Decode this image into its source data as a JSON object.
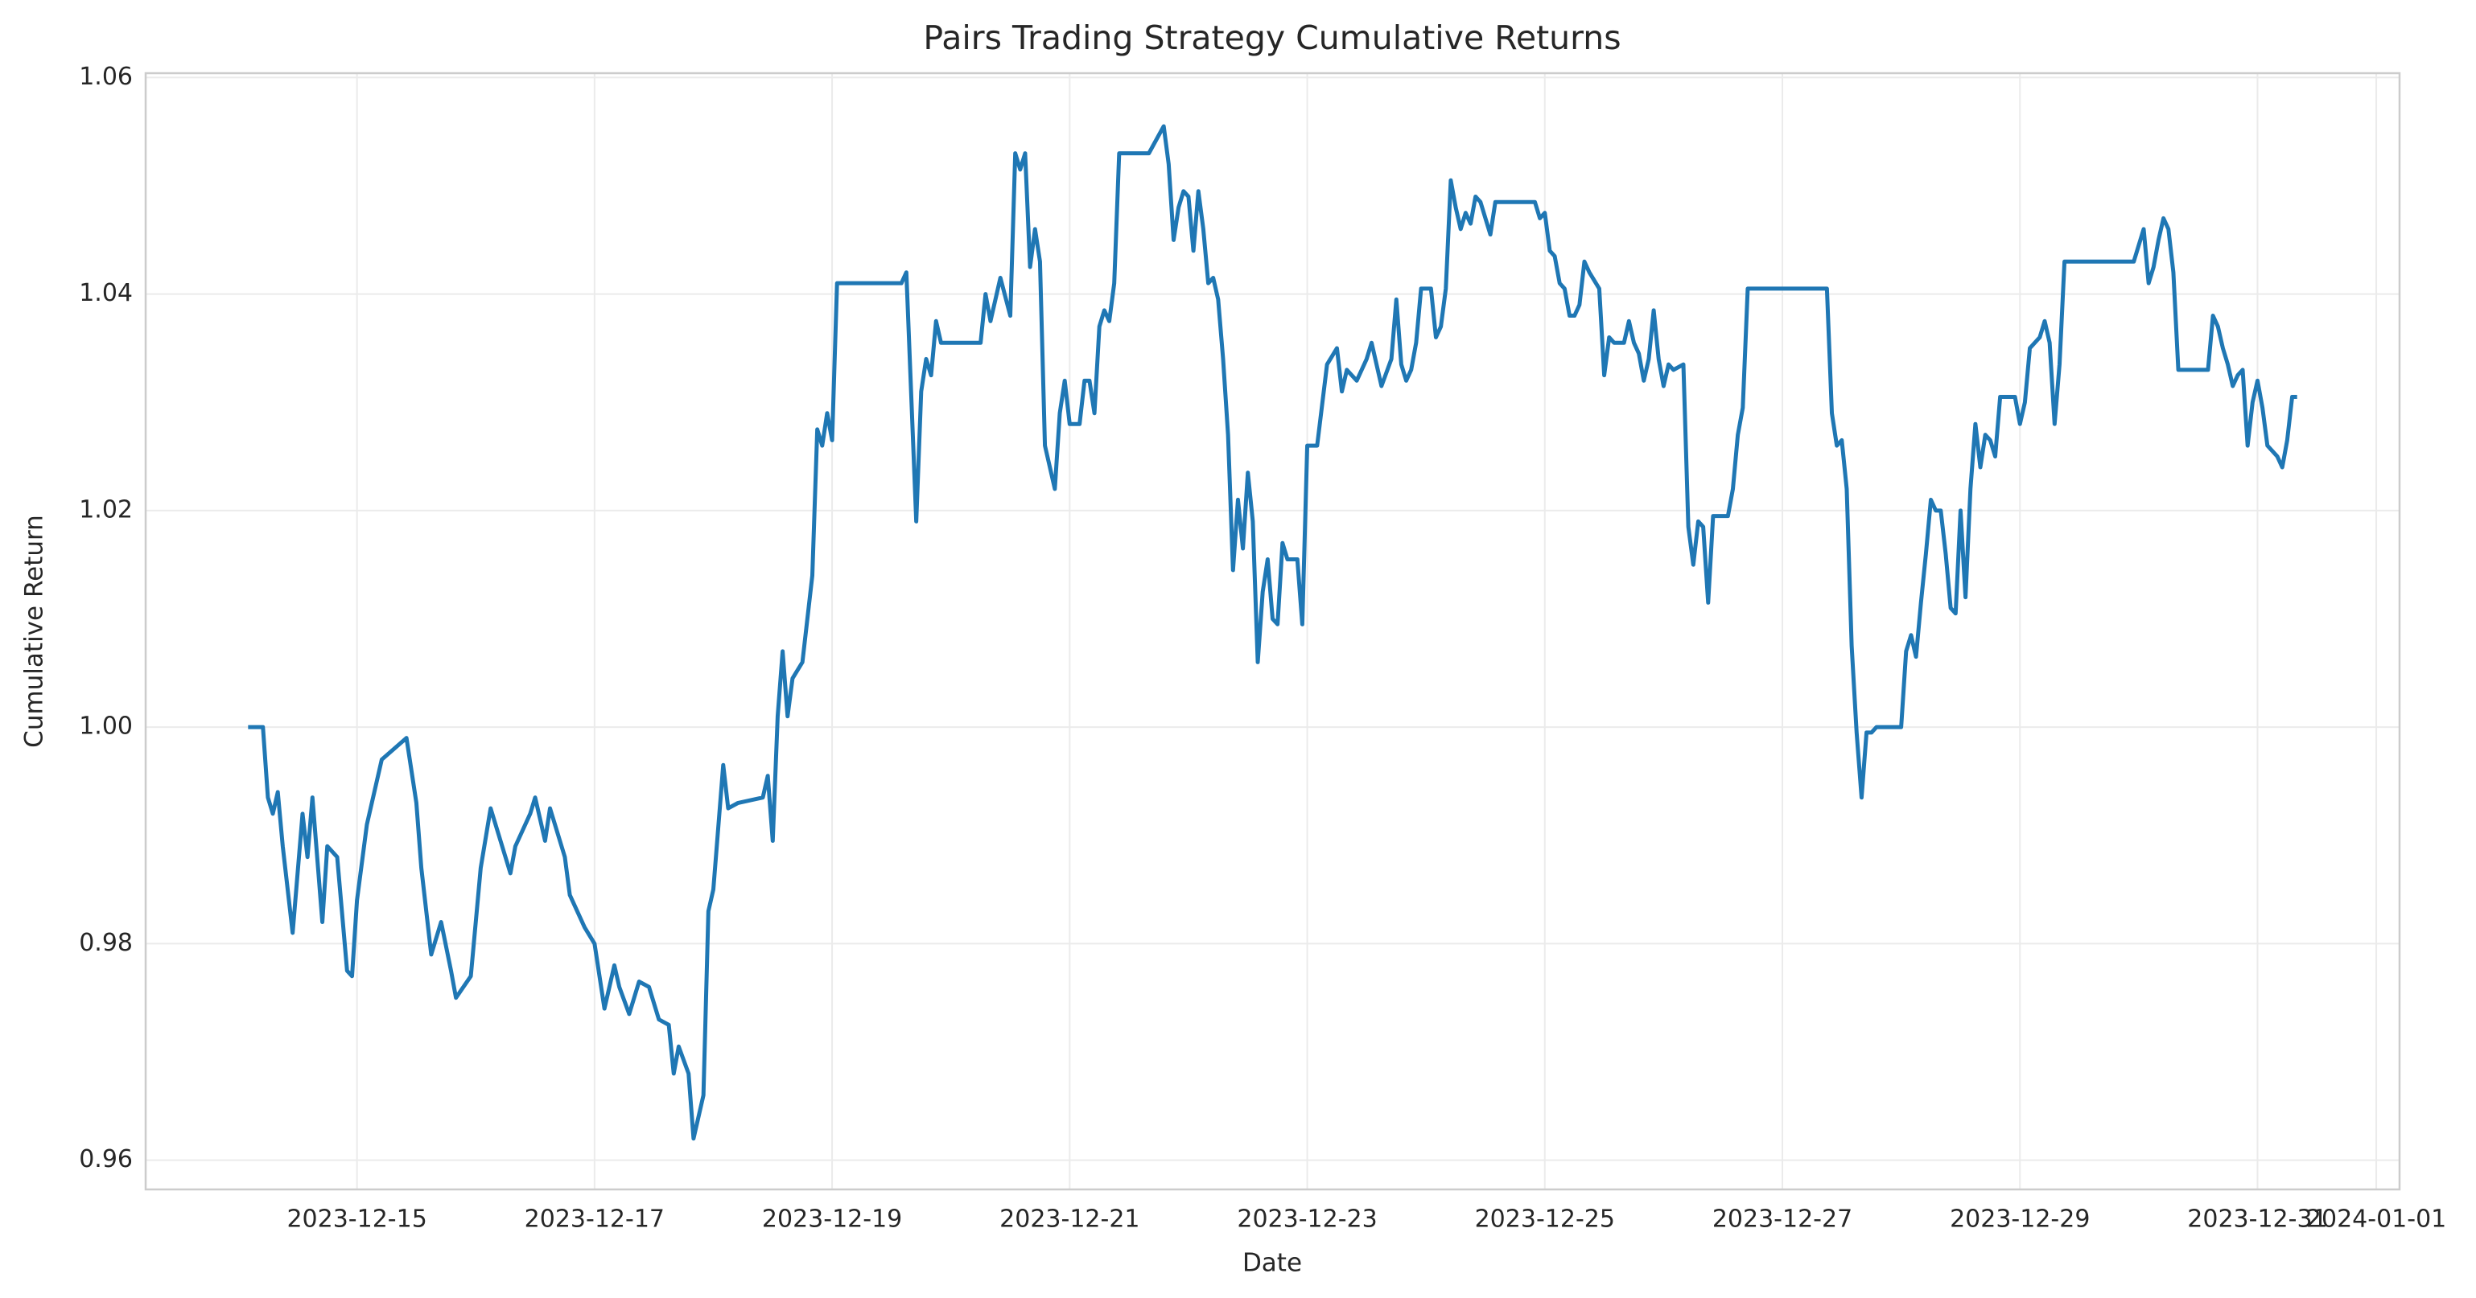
{
  "chart_data": {
    "type": "line",
    "title": "Pairs Trading Strategy Cumulative Returns",
    "x_label": "Date",
    "y_label": "Cumulative Return",
    "color": "#1f77b4",
    "grid": true,
    "x": [
      "2023-12-14T02:00",
      "2023-12-14T05:00",
      "2023-12-14T06:00",
      "2023-12-14T07:00",
      "2023-12-14T08:00",
      "2023-12-14T09:00",
      "2023-12-14T11:00",
      "2023-12-14T13:00",
      "2023-12-14T14:00",
      "2023-12-14T15:00",
      "2023-12-14T17:00",
      "2023-12-14T18:00",
      "2023-12-14T20:00",
      "2023-12-14T22:00",
      "2023-12-14T23:00",
      "2023-12-15T00:00",
      "2023-12-15T02:00",
      "2023-12-15T05:00",
      "2023-12-15T10:00",
      "2023-12-15T12:00",
      "2023-12-15T13:00",
      "2023-12-15T15:00",
      "2023-12-15T17:00",
      "2023-12-15T19:00",
      "2023-12-15T20:00",
      "2023-12-15T23:00",
      "2023-12-16T01:00",
      "2023-12-16T03:00",
      "2023-12-16T06:00",
      "2023-12-16T07:00",
      "2023-12-16T08:00",
      "2023-12-16T11:00",
      "2023-12-16T12:00",
      "2023-12-16T14:00",
      "2023-12-16T15:00",
      "2023-12-16T18:00",
      "2023-12-16T19:00",
      "2023-12-16T22:00",
      "2023-12-17T00:00",
      "2023-12-17T02:00",
      "2023-12-17T04:00",
      "2023-12-17T05:00",
      "2023-12-17T07:00",
      "2023-12-17T09:00",
      "2023-12-17T11:00",
      "2023-12-17T13:00",
      "2023-12-17T15:00",
      "2023-12-17T16:00",
      "2023-12-17T17:00",
      "2023-12-17T19:00",
      "2023-12-17T20:00",
      "2023-12-17T22:00",
      "2023-12-17T23:00",
      "2023-12-18T00:00",
      "2023-12-18T02:00",
      "2023-12-18T03:00",
      "2023-12-18T05:00",
      "2023-12-18T10:00",
      "2023-12-18T11:00",
      "2023-12-18T12:00",
      "2023-12-18T13:00",
      "2023-12-18T14:00",
      "2023-12-18T15:00",
      "2023-12-18T16:00",
      "2023-12-18T18:00",
      "2023-12-18T20:00",
      "2023-12-18T21:00",
      "2023-12-18T22:00",
      "2023-12-18T23:00",
      "2023-12-19T00:00",
      "2023-12-19T01:00",
      "2023-12-19T14:00",
      "2023-12-19T15:00",
      "2023-12-19T17:00",
      "2023-12-19T18:00",
      "2023-12-19T19:00",
      "2023-12-19T20:00",
      "2023-12-19T21:00",
      "2023-12-19T22:00",
      "2023-12-20T06:00",
      "2023-12-20T07:00",
      "2023-12-20T08:00",
      "2023-12-20T10:00",
      "2023-12-20T12:00",
      "2023-12-20T13:00",
      "2023-12-20T14:00",
      "2023-12-20T15:00",
      "2023-12-20T16:00",
      "2023-12-20T17:00",
      "2023-12-20T18:00",
      "2023-12-20T19:00",
      "2023-12-20T21:00",
      "2023-12-20T22:00",
      "2023-12-20T23:00",
      "2023-12-21T00:00",
      "2023-12-21T02:00",
      "2023-12-21T03:00",
      "2023-12-21T04:00",
      "2023-12-21T05:00",
      "2023-12-21T06:00",
      "2023-12-21T07:00",
      "2023-12-21T08:00",
      "2023-12-21T09:00",
      "2023-12-21T10:00",
      "2023-12-21T16:00",
      "2023-12-21T19:00",
      "2023-12-21T20:00",
      "2023-12-21T21:00",
      "2023-12-21T22:00",
      "2023-12-21T23:00",
      "2023-12-22T00:00",
      "2023-12-22T01:00",
      "2023-12-22T02:00",
      "2023-12-22T03:00",
      "2023-12-22T04:00",
      "2023-12-22T05:00",
      "2023-12-22T06:00",
      "2023-12-22T07:00",
      "2023-12-22T08:00",
      "2023-12-22T09:00",
      "2023-12-22T10:00",
      "2023-12-22T11:00",
      "2023-12-22T12:00",
      "2023-12-22T13:00",
      "2023-12-22T14:00",
      "2023-12-22T15:00",
      "2023-12-22T16:00",
      "2023-12-22T17:00",
      "2023-12-22T18:00",
      "2023-12-22T19:00",
      "2023-12-22T20:00",
      "2023-12-22T22:00",
      "2023-12-22T23:00",
      "2023-12-23T00:00",
      "2023-12-23T02:00",
      "2023-12-23T04:00",
      "2023-12-23T06:00",
      "2023-12-23T07:00",
      "2023-12-23T08:00",
      "2023-12-23T10:00",
      "2023-12-23T12:00",
      "2023-12-23T13:00",
      "2023-12-23T15:00",
      "2023-12-23T17:00",
      "2023-12-23T18:00",
      "2023-12-23T19:00",
      "2023-12-23T20:00",
      "2023-12-23T21:00",
      "2023-12-23T22:00",
      "2023-12-23T23:00",
      "2023-12-24T01:00",
      "2023-12-24T02:00",
      "2023-12-24T03:00",
      "2023-12-24T04:00",
      "2023-12-24T05:00",
      "2023-12-24T06:00",
      "2023-12-24T07:00",
      "2023-12-24T08:00",
      "2023-12-24T09:00",
      "2023-12-24T10:00",
      "2023-12-24T11:00",
      "2023-12-24T13:00",
      "2023-12-24T14:00",
      "2023-12-24T22:00",
      "2023-12-24T23:00",
      "2023-12-25T00:00",
      "2023-12-25T01:00",
      "2023-12-25T02:00",
      "2023-12-25T03:00",
      "2023-12-25T04:00",
      "2023-12-25T05:00",
      "2023-12-25T06:00",
      "2023-12-25T07:00",
      "2023-12-25T08:00",
      "2023-12-25T09:00",
      "2023-12-25T11:00",
      "2023-12-25T12:00",
      "2023-12-25T13:00",
      "2023-12-25T14:00",
      "2023-12-25T16:00",
      "2023-12-25T17:00",
      "2023-12-25T18:00",
      "2023-12-25T19:00",
      "2023-12-25T20:00",
      "2023-12-25T21:00",
      "2023-12-25T22:00",
      "2023-12-25T23:00",
      "2023-12-26T00:00",
      "2023-12-26T01:00",
      "2023-12-26T02:00",
      "2023-12-26T04:00",
      "2023-12-26T05:00",
      "2023-12-26T06:00",
      "2023-12-26T07:00",
      "2023-12-26T08:00",
      "2023-12-26T09:00",
      "2023-12-26T10:00",
      "2023-12-26T13:00",
      "2023-12-26T14:00",
      "2023-12-26T15:00",
      "2023-12-26T16:00",
      "2023-12-26T17:00",
      "2023-12-27T09:00",
      "2023-12-27T10:00",
      "2023-12-27T11:00",
      "2023-12-27T12:00",
      "2023-12-27T13:00",
      "2023-12-27T14:00",
      "2023-12-27T15:00",
      "2023-12-27T16:00",
      "2023-12-27T17:00",
      "2023-12-27T18:00",
      "2023-12-27T19:00",
      "2023-12-28T00:00",
      "2023-12-28T01:00",
      "2023-12-28T02:00",
      "2023-12-28T03:00",
      "2023-12-28T04:00",
      "2023-12-28T05:00",
      "2023-12-28T06:00",
      "2023-12-28T07:00",
      "2023-12-28T08:00",
      "2023-12-28T09:00",
      "2023-12-28T10:00",
      "2023-12-28T11:00",
      "2023-12-28T12:00",
      "2023-12-28T13:00",
      "2023-12-28T14:00",
      "2023-12-28T15:00",
      "2023-12-28T16:00",
      "2023-12-28T17:00",
      "2023-12-28T18:00",
      "2023-12-28T19:00",
      "2023-12-28T20:00",
      "2023-12-28T23:00",
      "2023-12-29T00:00",
      "2023-12-29T01:00",
      "2023-12-29T02:00",
      "2023-12-29T04:00",
      "2023-12-29T05:00",
      "2023-12-29T06:00",
      "2023-12-29T07:00",
      "2023-12-29T08:00",
      "2023-12-29T09:00",
      "2023-12-29T23:00",
      "2023-12-30T01:00",
      "2023-12-30T02:00",
      "2023-12-30T03:00",
      "2023-12-30T04:00",
      "2023-12-30T05:00",
      "2023-12-30T06:00",
      "2023-12-30T07:00",
      "2023-12-30T08:00",
      "2023-12-30T14:00",
      "2023-12-30T15:00",
      "2023-12-30T16:00",
      "2023-12-30T17:00",
      "2023-12-30T18:00",
      "2023-12-30T19:00",
      "2023-12-30T20:00",
      "2023-12-30T21:00",
      "2023-12-30T22:00",
      "2023-12-30T23:00",
      "2023-12-31T00:00",
      "2023-12-31T01:00",
      "2023-12-31T02:00",
      "2023-12-31T03:00",
      "2023-12-31T04:00",
      "2023-12-31T05:00",
      "2023-12-31T06:00",
      "2023-12-31T07:00",
      "2023-12-31T08:00"
    ],
    "values": [
      1.0,
      1.0,
      0.9935,
      0.992,
      0.994,
      0.989,
      0.981,
      0.992,
      0.988,
      0.9935,
      0.982,
      0.989,
      0.988,
      0.9775,
      0.977,
      0.984,
      0.991,
      0.997,
      0.999,
      0.993,
      0.987,
      0.979,
      0.982,
      0.9775,
      0.975,
      0.977,
      0.987,
      0.9925,
      0.988,
      0.9865,
      0.989,
      0.992,
      0.9935,
      0.9895,
      0.9925,
      0.988,
      0.9845,
      0.9815,
      0.98,
      0.974,
      0.978,
      0.976,
      0.9735,
      0.9765,
      0.976,
      0.973,
      0.9725,
      0.968,
      0.9705,
      0.968,
      0.962,
      0.966,
      0.983,
      0.985,
      0.9965,
      0.9925,
      0.993,
      0.9935,
      0.9955,
      0.9895,
      1.001,
      1.007,
      1.001,
      1.0045,
      1.006,
      1.014,
      1.0275,
      1.026,
      1.029,
      1.0265,
      1.041,
      1.041,
      1.042,
      1.019,
      1.031,
      1.034,
      1.0325,
      1.0375,
      1.0355,
      1.0355,
      1.04,
      1.0375,
      1.0415,
      1.038,
      1.053,
      1.0515,
      1.053,
      1.0425,
      1.046,
      1.043,
      1.026,
      1.022,
      1.029,
      1.032,
      1.028,
      1.028,
      1.032,
      1.032,
      1.029,
      1.037,
      1.0385,
      1.0375,
      1.041,
      1.053,
      1.053,
      1.0555,
      1.052,
      1.045,
      1.048,
      1.0495,
      1.049,
      1.044,
      1.0495,
      1.046,
      1.041,
      1.0415,
      1.0395,
      1.034,
      1.027,
      1.0145,
      1.021,
      1.0165,
      1.0235,
      1.019,
      1.006,
      1.0125,
      1.0155,
      1.01,
      1.0095,
      1.017,
      1.0155,
      1.0155,
      1.0095,
      1.026,
      1.026,
      1.0335,
      1.035,
      1.031,
      1.033,
      1.032,
      1.034,
      1.0355,
      1.0315,
      1.034,
      1.0395,
      1.0335,
      1.032,
      1.033,
      1.0355,
      1.0405,
      1.0405,
      1.036,
      1.037,
      1.0405,
      1.0505,
      1.048,
      1.046,
      1.0475,
      1.0465,
      1.049,
      1.0485,
      1.0455,
      1.0485,
      1.0485,
      1.047,
      1.0475,
      1.044,
      1.0435,
      1.041,
      1.0405,
      1.038,
      1.038,
      1.039,
      1.043,
      1.042,
      1.0405,
      1.0325,
      1.036,
      1.0355,
      1.0355,
      1.0375,
      1.0355,
      1.0345,
      1.032,
      1.034,
      1.0385,
      1.034,
      1.0315,
      1.0335,
      1.033,
      1.0335,
      1.0185,
      1.015,
      1.019,
      1.0185,
      1.0115,
      1.0195,
      1.0195,
      1.022,
      1.027,
      1.0295,
      1.0405,
      1.0405,
      1.029,
      1.026,
      1.0265,
      1.022,
      1.0075,
      0.9995,
      0.9935,
      0.9995,
      0.9995,
      1.0,
      1.0,
      1.007,
      1.0085,
      1.0065,
      1.0115,
      1.016,
      1.021,
      1.02,
      1.02,
      1.016,
      1.011,
      1.0105,
      1.02,
      1.012,
      1.022,
      1.028,
      1.024,
      1.027,
      1.0265,
      1.025,
      1.0305,
      1.0305,
      1.028,
      1.03,
      1.035,
      1.036,
      1.0375,
      1.0355,
      1.028,
      1.0335,
      1.043,
      1.043,
      1.046,
      1.041,
      1.0425,
      1.045,
      1.047,
      1.046,
      1.042,
      1.033,
      1.033,
      1.038,
      1.037,
      1.035,
      1.0335,
      1.0315,
      1.0325,
      1.033,
      1.026,
      1.03,
      1.032,
      1.0295,
      1.026,
      1.0255,
      1.025,
      1.024,
      1.0265,
      1.0305,
      1.0305
    ],
    "xlim": [
      "2023-12-13T05:18",
      "2024-01-01T04:42"
    ],
    "xticks": [
      "2023-12-15",
      "2023-12-17",
      "2023-12-19",
      "2023-12-21",
      "2023-12-23",
      "2023-12-25",
      "2023-12-27",
      "2023-12-29",
      "2023-12-31",
      "2024-01-01"
    ],
    "ylim": [
      0.9573,
      1.0604
    ],
    "yticks": [
      0.96,
      0.98,
      {
        "value": 1,
        "label": "1.00"
      },
      1.02,
      1.04,
      1.06
    ]
  }
}
